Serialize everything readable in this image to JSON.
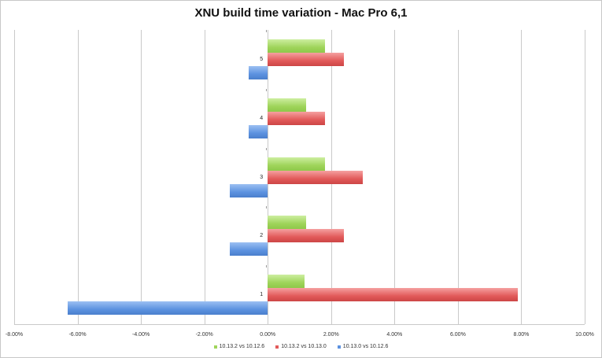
{
  "chart_data": {
    "type": "bar",
    "orientation": "horizontal",
    "title": "XNU build time variation - Mac Pro 6,1",
    "xlabel": "",
    "ylabel": "",
    "xlim": [
      -8,
      10
    ],
    "x_ticks": [
      "-8.00%",
      "-6.00%",
      "-4.00%",
      "-2.00%",
      "0.00%",
      "2.00%",
      "4.00%",
      "6.00%",
      "8.00%",
      "10.00%"
    ],
    "categories": [
      "1",
      "2",
      "3",
      "4",
      "5"
    ],
    "series": [
      {
        "name": "10.13.2 vs 10.12.6",
        "color": "#9fd45a",
        "values": [
          1.15,
          1.2,
          1.8,
          1.2,
          1.8
        ]
      },
      {
        "name": "10.13.2 vs 10.13.0",
        "color": "#e25a5a",
        "values": [
          7.9,
          2.4,
          3.0,
          1.8,
          2.4
        ]
      },
      {
        "name": "10.13.0 vs 10.12.6",
        "color": "#5c92e0",
        "values": [
          -6.3,
          -1.2,
          -1.2,
          -0.6,
          -0.6
        ]
      }
    ],
    "grid": true,
    "legend_position": "bottom"
  }
}
